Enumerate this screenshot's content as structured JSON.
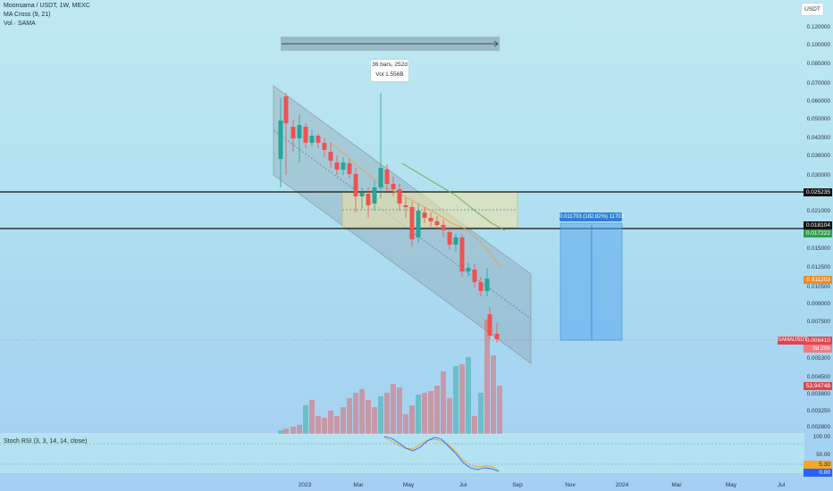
{
  "legend": {
    "symbol_line": "Moonsama / USDT, 1W, MEXC",
    "ma_line": "MA Cross (9, 21)",
    "vol_line": "Vol · SAMA"
  },
  "currency_button": "USDT",
  "price_axis": {
    "labels": [
      "0.120000",
      "0.100000",
      "0.085000",
      "0.070000",
      "0.060000",
      "0.050000",
      "0.042000",
      "0.036000",
      "0.030000",
      "0.021000",
      "0.015000",
      "0.012500",
      "0.010500",
      "0.009000",
      "0.007500",
      "0.005300",
      "0.004500",
      "0.003800",
      "0.003250",
      "0.002800"
    ],
    "horizontal_line_top": "0.025235",
    "horizontal_line_bottom": "0.018104",
    "green_box": "0.017222",
    "orange_box": "0.011203",
    "current_price": "0.006410",
    "countdown": "3d 20h",
    "red_box_2": "53.94748"
  },
  "symbol_badge": "SAMAUSDT",
  "annotations": {
    "bars_range": "36 bars, 252d",
    "bars_volume": "Vol 1.556B",
    "measure_label": "0.011703 (182.82%) 11703"
  },
  "stoch": {
    "label": "Stoch RSI (3, 3, 14, 14, close)",
    "levels": [
      "100.00",
      "50.00"
    ],
    "k_value": "5.30",
    "d_value": "0.00"
  },
  "time_axis": [
    "2023",
    "Mar",
    "May",
    "Jul",
    "Sep",
    "Nov",
    "2024",
    "Mar",
    "May",
    "Jul"
  ],
  "colors": {
    "up": "#26a69a",
    "down": "#ef5350",
    "channel": "#8a9ba8",
    "ma_fast": "#f39c38",
    "ma_slow": "#5ea84a",
    "measure": "#2f7fd8",
    "stoch_k": "#2962ff",
    "stoch_d": "#f5a623"
  }
}
